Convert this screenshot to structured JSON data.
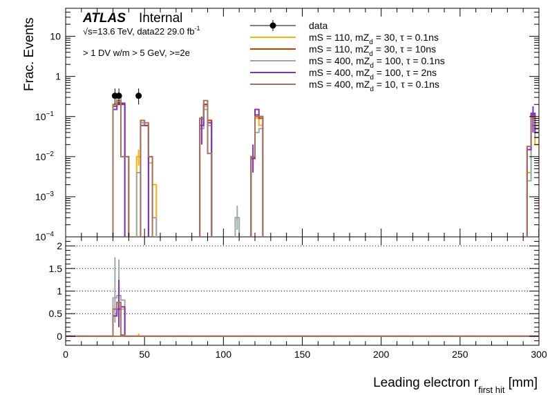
{
  "header": {
    "atlas": "ATLAS",
    "internal": "Internal",
    "energy_sqrt": "√s",
    "energy_text": "=13.6 TeV, data22 29.0 fb",
    "energy_sup": "-1",
    "selection": "> 1 DV w/m > 5 GeV, >=2e"
  },
  "legend": {
    "placement": "top-right",
    "entries": [
      {
        "id": "data",
        "label": "data",
        "sub": "",
        "suffix": "",
        "color": "#000000",
        "style": "marker"
      },
      {
        "id": "s1",
        "label": "mS = 110, mZ",
        "sub": "d",
        "suffix": " = 30, τ = 0.1ns",
        "color": "#ffb000",
        "style": "line"
      },
      {
        "id": "s2",
        "label": "mS = 110, mZ",
        "sub": "d",
        "suffix": " = 30, τ = 10ns",
        "color": "#c43e00",
        "style": "line"
      },
      {
        "id": "s3",
        "label": "mS = 400, mZ",
        "sub": "d",
        "suffix": " = 100, τ = 0.1ns",
        "color": "#9aa9a9",
        "style": "line"
      },
      {
        "id": "s4",
        "label": "mS = 400, mZ",
        "sub": "d",
        "suffix": " = 100, τ = 2ns",
        "color": "#7f2ec6",
        "style": "line"
      },
      {
        "id": "s5",
        "label": "mS = 400, mZ",
        "sub": "d",
        "suffix": " = 10, τ = 0.1ns",
        "color": "#a5715a",
        "style": "line"
      }
    ]
  },
  "axes": {
    "ylabel_top": "Frac. Events",
    "xlabel_main": "Leading electron r",
    "xlabel_sub": "first hit",
    "xlabel_unit": " [mm]"
  },
  "chart_data": {
    "type": "histogram",
    "xlim": [
      0,
      300
    ],
    "bin_width": 2.5,
    "top_panel": {
      "yscale": "log",
      "ylim": [
        0.0001,
        50
      ],
      "yticks": [
        {
          "value": 0.001,
          "base": "10",
          "exp": "−3"
        },
        {
          "value": 0.01,
          "base": "10",
          "exp": "−2"
        },
        {
          "value": 0.1,
          "base": "10",
          "exp": "−1"
        },
        {
          "value": 1,
          "base": "1",
          "exp": ""
        },
        {
          "value": 10,
          "base": "10",
          "exp": ""
        }
      ],
      "yticks_cut": [
        {
          "value": 0.0001,
          "base": "10",
          "exp": "−4"
        }
      ],
      "data_points": [
        {
          "x": 31.25,
          "y": 0.33,
          "yerr": [
            0.2,
            0.5
          ]
        },
        {
          "x": 33.75,
          "y": 0.33,
          "yerr": [
            0.2,
            0.5
          ]
        },
        {
          "x": 46.25,
          "y": 0.33,
          "yerr": [
            0.2,
            0.5
          ]
        }
      ],
      "series": [
        {
          "id": "s1",
          "bins": [
            [
              30,
              0.2
            ],
            [
              32.5,
              0.25
            ],
            [
              35,
              0.2
            ],
            [
              37.5,
              0.01
            ],
            [
              45,
              0.01
            ],
            [
              47.5,
              0.08
            ],
            [
              50,
              0.06
            ],
            [
              52.5,
              0.007
            ],
            [
              55,
              0.002
            ],
            [
              85,
              0.09
            ],
            [
              87.5,
              0.18
            ],
            [
              90,
              0.08
            ],
            [
              117.5,
              0.01
            ],
            [
              120,
              0.09
            ],
            [
              122.5,
              0.06
            ],
            [
              292.5,
              0.004
            ],
            [
              295,
              0.09
            ],
            [
              297.5,
              0.02
            ]
          ],
          "err": [
            [
              45,
              0.006,
              0.015
            ]
          ]
        },
        {
          "id": "s2",
          "bins": [
            [
              30,
              0.18
            ],
            [
              32.5,
              0.22
            ],
            [
              35,
              0.2
            ],
            [
              37.5,
              0.01
            ],
            [
              47.5,
              0.07
            ],
            [
              50,
              0.06
            ],
            [
              85,
              0.09
            ],
            [
              87.5,
              0.2
            ],
            [
              90,
              0.08
            ],
            [
              117.5,
              0.01
            ],
            [
              120,
              0.11
            ],
            [
              122.5,
              0.09
            ],
            [
              292.5,
              0.018
            ],
            [
              295,
              0.11
            ],
            [
              297.5,
              0.05
            ]
          ],
          "err": []
        },
        {
          "id": "s3",
          "bins": [
            [
              30,
              0.2
            ],
            [
              32.5,
              0.3
            ],
            [
              35,
              0.22
            ],
            [
              45,
              0.004
            ],
            [
              47.5,
              0.07
            ],
            [
              50,
              0.06
            ],
            [
              52.5,
              0.01
            ],
            [
              55,
              0.0003
            ],
            [
              85,
              0.05
            ],
            [
              87.5,
              0.15
            ],
            [
              90,
              0.06
            ],
            [
              107.5,
              0.0003
            ],
            [
              117.5,
              0.01
            ],
            [
              120,
              0.04
            ],
            [
              122.5,
              0.05
            ],
            [
              292.5,
              0.0025
            ],
            [
              295,
              0.06
            ],
            [
              297.5,
              0.03
            ]
          ],
          "err": [
            [
              107.5,
              0.00015,
              0.0006
            ]
          ]
        },
        {
          "id": "s4",
          "bins": [
            [
              30,
              0.15
            ],
            [
              32.5,
              0.2
            ],
            [
              35,
              0.21
            ],
            [
              47.5,
              0.06
            ],
            [
              50,
              0.06
            ],
            [
              85,
              0.06
            ],
            [
              87.5,
              0.2
            ],
            [
              90,
              0.07
            ],
            [
              117.5,
              0.009
            ],
            [
              120,
              0.15
            ],
            [
              122.5,
              0.1
            ],
            [
              292.5,
              0.015
            ],
            [
              295,
              0.12
            ],
            [
              297.5,
              0.04
            ]
          ],
          "err": [
            [
              85,
              0.02,
              0.1
            ],
            [
              117.5,
              0.004,
              0.02
            ],
            [
              295,
              0.04,
              0.18
            ]
          ]
        },
        {
          "id": "s5",
          "bins": [
            [
              30,
              0.2
            ],
            [
              32.5,
              0.25
            ],
            [
              35,
              0.01
            ],
            [
              37.5,
              0.01
            ],
            [
              47.5,
              0.08
            ],
            [
              50,
              0.07
            ],
            [
              52.5,
              0.01
            ],
            [
              85,
              0.09
            ],
            [
              87.5,
              0.25
            ],
            [
              90,
              0.012
            ],
            [
              117.5,
              0.01
            ],
            [
              120,
              0.1
            ],
            [
              122.5,
              0.1
            ],
            [
              292.5,
              0.018
            ],
            [
              295,
              0.1
            ],
            [
              297.5,
              0.06
            ]
          ],
          "err": []
        }
      ]
    },
    "bottom_panel": {
      "ylim": [
        -0.2,
        2.2
      ],
      "yticks": [
        0,
        0.5,
        1,
        1.5,
        2
      ],
      "ytick_labels": [
        "0",
        "0.5",
        "1",
        "1.5",
        "2"
      ],
      "xticks": [
        0,
        50,
        100,
        150,
        200,
        250,
        300
      ],
      "xtick_labels": [
        "0",
        "50",
        "100",
        "150",
        "200",
        "250",
        "300"
      ],
      "gridlines": [
        0.5,
        1,
        1.5,
        2
      ],
      "baseline": 0,
      "ratios": [
        {
          "id": "s1",
          "bins": [
            [
              30,
              0.6
            ],
            [
              32.5,
              0.75
            ],
            [
              35,
              0.6
            ]
          ],
          "err": [
            [
              46.25,
              0.0,
              0.06
            ]
          ]
        },
        {
          "id": "s3",
          "bins": [
            [
              30,
              0.85
            ],
            [
              32.5,
              0.9
            ],
            [
              35,
              0.8
            ]
          ],
          "err": [
            [
              31.25,
              0.3,
              1.75
            ],
            [
              33.75,
              0.4,
              1.7
            ]
          ]
        },
        {
          "id": "s4",
          "bins": [
            [
              30,
              0.45
            ],
            [
              32.5,
              0.6
            ],
            [
              35,
              0.65
            ]
          ],
          "err": [
            [
              33.75,
              0.2,
              1.25
            ]
          ]
        },
        {
          "id": "s5",
          "bins": [
            [
              30,
              0.6
            ],
            [
              32.5,
              0.75
            ],
            [
              35,
              0.03
            ]
          ],
          "err": []
        }
      ]
    }
  }
}
